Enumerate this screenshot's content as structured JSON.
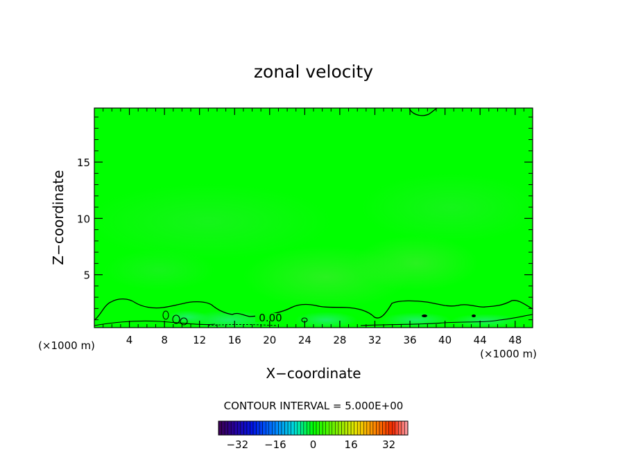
{
  "chart_data": {
    "type": "heatmap",
    "title": "zonal velocity",
    "xlabel": "X−coordinate",
    "ylabel": "Z−coordinate",
    "x_unit_left": "(×1000 m)",
    "x_unit_right": "(×1000 m)",
    "xlim": [
      0,
      50
    ],
    "ylim": [
      0.3,
      19.8
    ],
    "x_ticks": [
      4,
      8,
      12,
      16,
      20,
      24,
      28,
      32,
      36,
      40,
      44,
      48
    ],
    "y_ticks": [
      5,
      10,
      15
    ],
    "x_tick_labels": [
      "4",
      "8",
      "12",
      "16",
      "20",
      "24",
      "28",
      "32",
      "36",
      "40",
      "44",
      "48"
    ],
    "y_tick_labels": [
      "5",
      "10",
      "15"
    ],
    "contour_label": "0.00",
    "contour_interval_text": "CONTOUR INTERVAL = 5.000E+00",
    "colorbar": {
      "range": [
        -40,
        40
      ],
      "ticks": [
        -32,
        -16,
        0,
        16,
        32
      ],
      "tick_labels": [
        "−32",
        "−16",
        "0",
        "16",
        "32"
      ]
    },
    "background_color": "#00ff00"
  }
}
